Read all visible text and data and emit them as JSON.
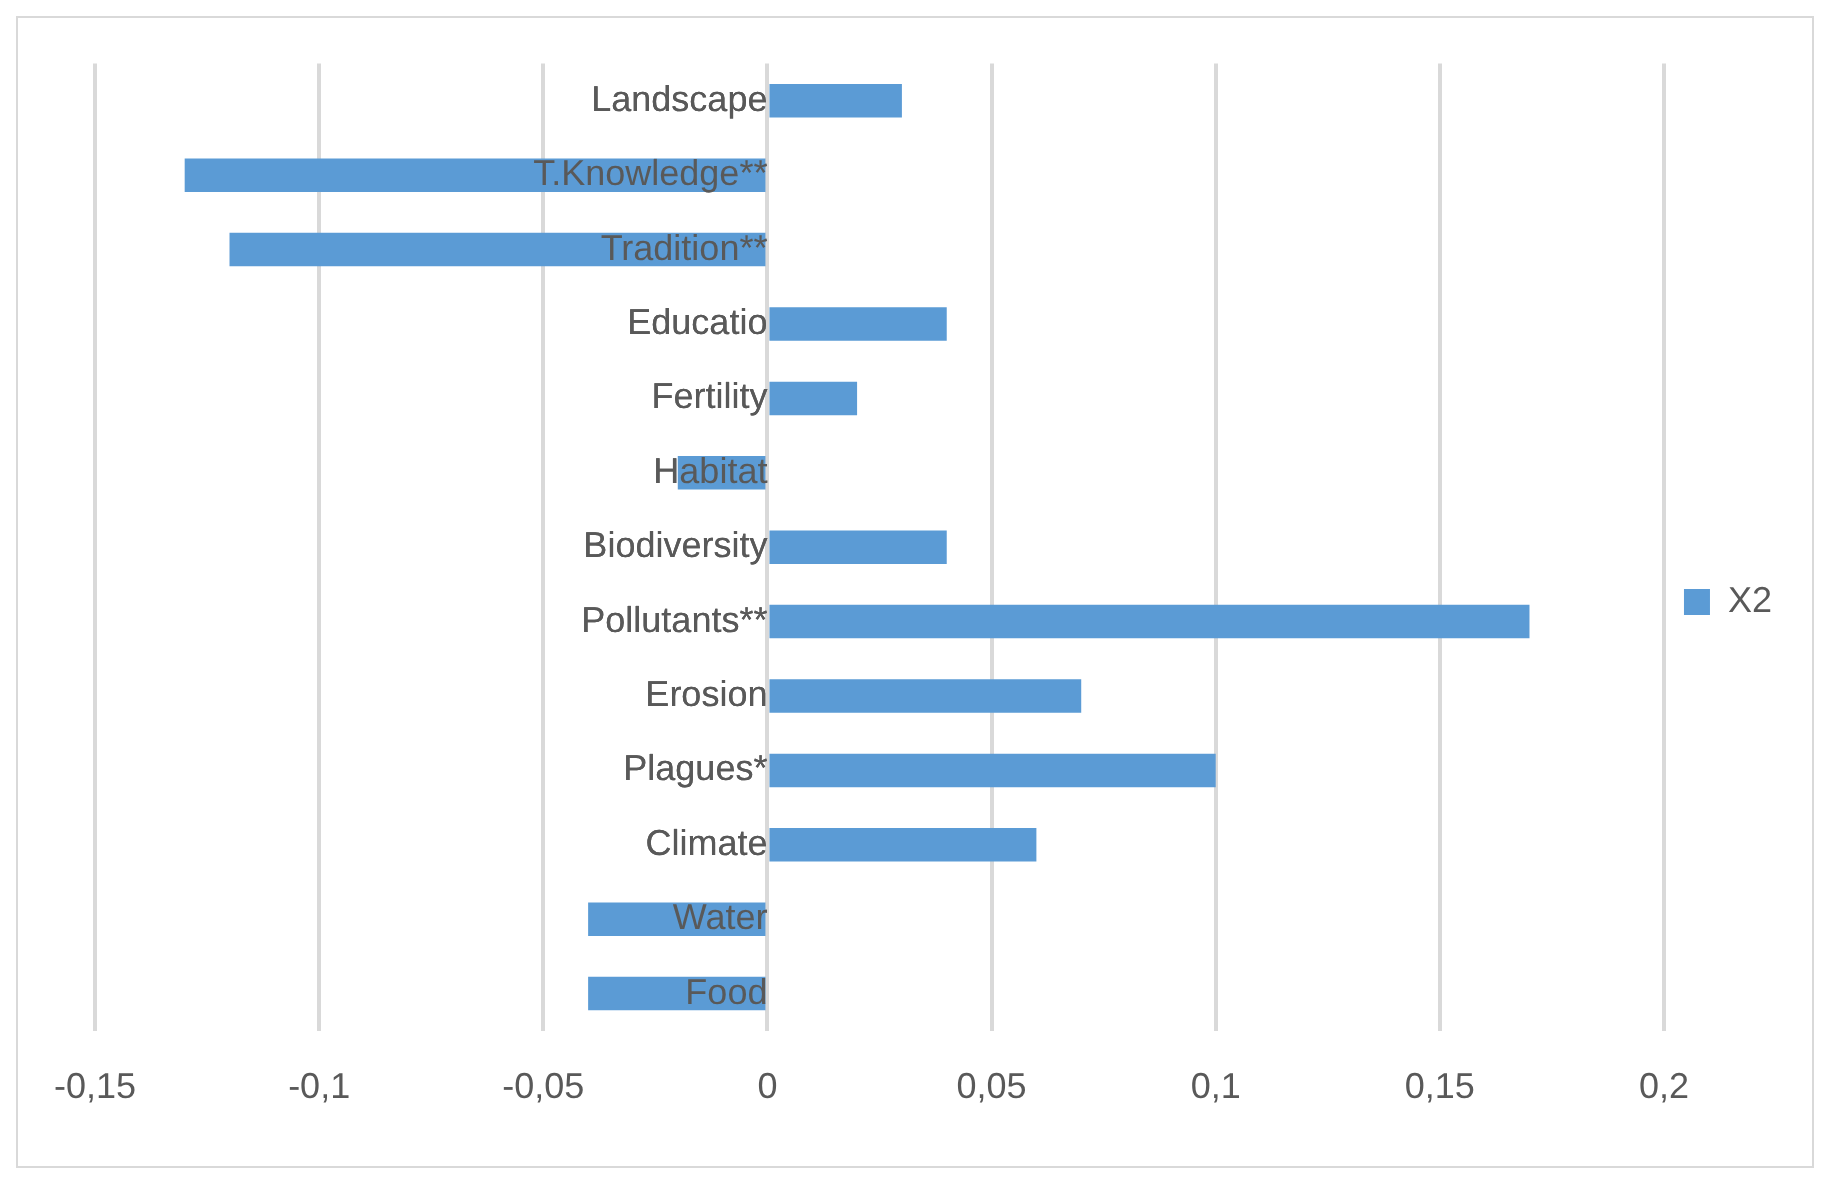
{
  "chart_data": {
    "type": "bar",
    "orientation": "horizontal",
    "categories": [
      "Landscape",
      "T.Knowledge**",
      "Tradition**",
      "Educatio",
      "Fertility",
      "Habitat",
      "Biodiversity",
      "Pollutants**",
      "Erosion",
      "Plagues*",
      "Climate",
      "Water",
      "Food"
    ],
    "series": [
      {
        "name": "X2",
        "color": "#5b9bd5",
        "values": [
          0.03,
          -0.13,
          -0.12,
          0.04,
          0.02,
          -0.02,
          0.04,
          0.17,
          0.07,
          0.1,
          0.06,
          -0.04,
          -0.04
        ]
      }
    ],
    "xlim": [
      -0.15,
      0.2
    ],
    "xticks": [
      {
        "value": -0.15,
        "label": "-0,15"
      },
      {
        "value": -0.1,
        "label": "-0,1"
      },
      {
        "value": -0.05,
        "label": "-0,05"
      },
      0,
      {
        "value": 0.05,
        "label": "0,05"
      },
      {
        "value": 0.1,
        "label": "0,1"
      },
      {
        "value": 0.15,
        "label": "0,15"
      },
      {
        "value": 0.2,
        "label": "0,2"
      }
    ],
    "grid": "x",
    "legend": "right"
  }
}
